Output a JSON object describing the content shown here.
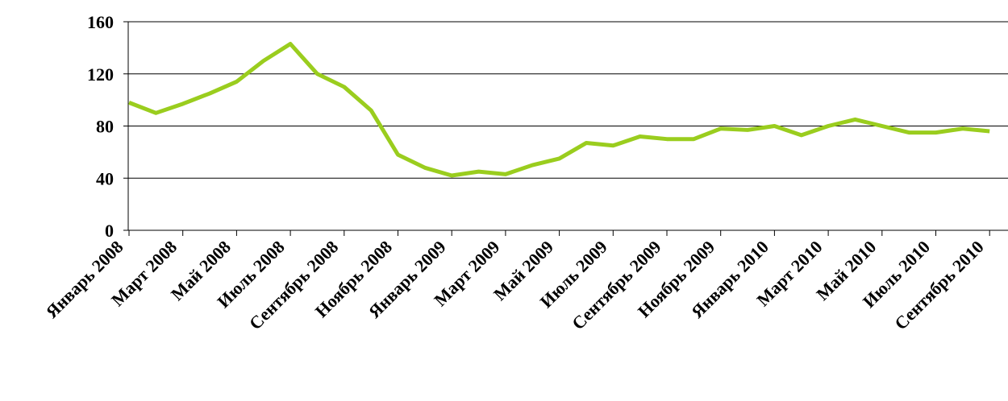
{
  "chart_data": {
    "type": "line",
    "categories": [
      "Январь 2008",
      null,
      "Март 2008",
      null,
      "Май 2008",
      null,
      "Июль 2008",
      null,
      "Сентябрь 2008",
      null,
      "Ноябрь 2008",
      null,
      "Январь 2009",
      null,
      "Март 2009",
      null,
      "Май 2009",
      null,
      "Июль 2009",
      null,
      "Сентябрь 2009",
      null,
      "Ноябрь 2009",
      null,
      "Январь 2010",
      null,
      "Март 2010",
      null,
      "Май 2010",
      null,
      "Июль 2010",
      null,
      "Сентябрь 2010"
    ],
    "values": [
      98,
      90,
      97,
      105,
      114,
      130,
      143,
      120,
      110,
      92,
      58,
      48,
      42,
      45,
      43,
      50,
      55,
      67,
      65,
      72,
      70,
      70,
      78,
      77,
      80,
      73,
      80,
      85,
      80,
      75,
      75,
      78,
      76
    ],
    "color": "#9acd1e",
    "ylim": [
      0,
      160
    ],
    "yticks": [
      0,
      40,
      80,
      120,
      160
    ],
    "grid": true
  }
}
